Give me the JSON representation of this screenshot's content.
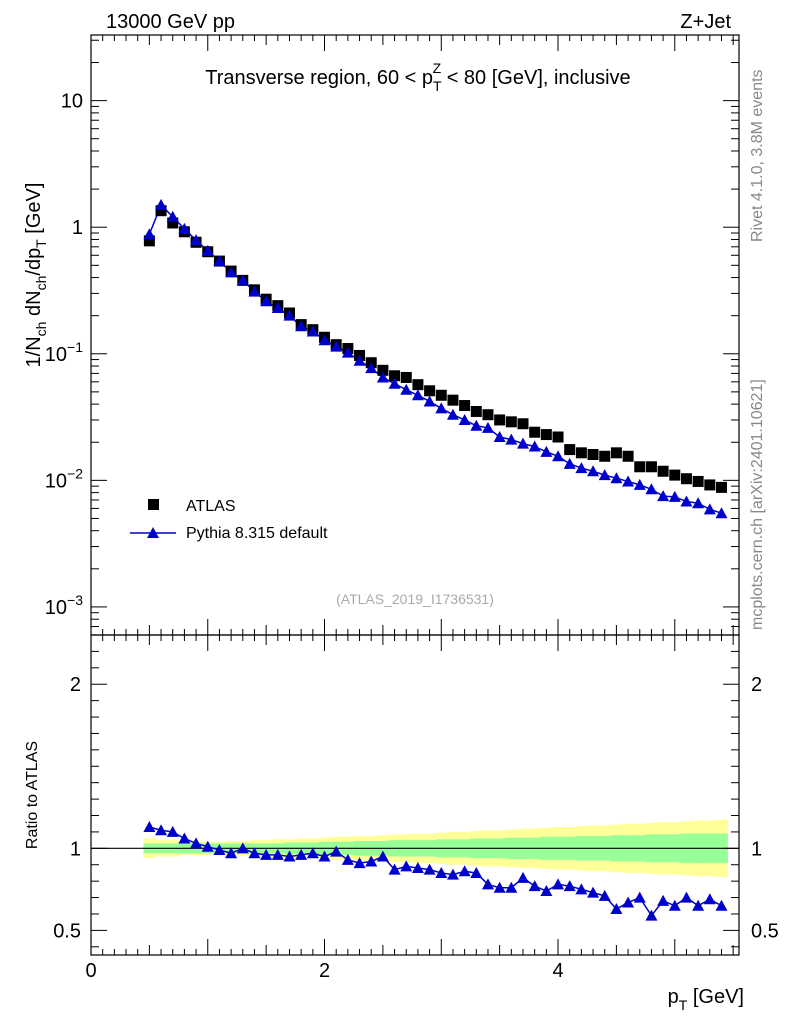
{
  "header": {
    "left": "13000 GeV pp",
    "right": "Z+Jet"
  },
  "side_labels": {
    "rivet": "Rivet 4.1.0,  3.8M events",
    "mcplots": "mcplots.cern.ch [arXiv:2401.10621]"
  },
  "chart_data": [
    {
      "type": "scatter",
      "panel": "main",
      "title_parts": {
        "prefix": "Transverse region, 60 < p",
        "sub": "T",
        "sup": "Z",
        "suffix": " < 80 [GeV], inclusive"
      },
      "ylabel_parts": {
        "a": "1/N",
        "a_sub": "ch",
        "b": " dN",
        "b_sub": "ch",
        "c": "/dp",
        "c_sub": "T",
        "d": " [GeV]"
      },
      "yscale": "log",
      "ylim": [
        0.0006,
        33
      ],
      "xlim": [
        0,
        5.55
      ],
      "y_ticks": [
        {
          "value": 10,
          "label": "10"
        },
        {
          "value": 1,
          "label": "1"
        },
        {
          "base": "10",
          "exp": "−1",
          "value": 0.1
        },
        {
          "base": "10",
          "exp": "−2",
          "value": 0.01
        },
        {
          "base": "10",
          "exp": "−3",
          "value": 0.001
        }
      ],
      "ref_label": "(ATLAS_2019_I1736531)",
      "legend": [
        {
          "name": "ATLAS",
          "marker": "square",
          "color": "#000000"
        },
        {
          "name": "Pythia 8.315 default",
          "marker": "triangle",
          "color": "#0000cc"
        }
      ],
      "x": [
        0.5,
        0.6,
        0.7,
        0.8,
        0.9,
        1.0,
        1.1,
        1.2,
        1.3,
        1.4,
        1.5,
        1.6,
        1.7,
        1.8,
        1.9,
        2.0,
        2.1,
        2.2,
        2.3,
        2.4,
        2.5,
        2.6,
        2.7,
        2.8,
        2.9,
        3.0,
        3.1,
        3.2,
        3.3,
        3.4,
        3.5,
        3.6,
        3.7,
        3.8,
        3.9,
        4.0,
        4.1,
        4.2,
        4.3,
        4.4,
        4.5,
        4.6,
        4.7,
        4.8,
        4.9,
        5.0,
        5.1,
        5.2,
        5.3,
        5.4
      ],
      "series": [
        {
          "name": "ATLAS",
          "values": [
            0.78,
            1.35,
            1.08,
            0.92,
            0.76,
            0.64,
            0.54,
            0.45,
            0.38,
            0.32,
            0.27,
            0.24,
            0.21,
            0.17,
            0.155,
            0.135,
            0.118,
            0.11,
            0.097,
            0.085,
            0.074,
            0.067,
            0.065,
            0.057,
            0.051,
            0.047,
            0.043,
            0.039,
            0.035,
            0.033,
            0.03,
            0.029,
            0.028,
            0.024,
            0.023,
            0.022,
            0.0175,
            0.0165,
            0.016,
            0.0155,
            0.0165,
            0.0155,
            0.0128,
            0.0128,
            0.0118,
            0.011,
            0.0103,
            0.0098,
            0.0092,
            0.0088
          ]
        },
        {
          "name": "Pythia 8.315 default",
          "values": [
            0.88,
            1.5,
            1.21,
            0.97,
            0.79,
            0.65,
            0.54,
            0.44,
            0.38,
            0.31,
            0.26,
            0.23,
            0.2,
            0.165,
            0.15,
            0.128,
            0.114,
            0.102,
            0.088,
            0.077,
            0.065,
            0.058,
            0.052,
            0.047,
            0.042,
            0.037,
            0.033,
            0.03,
            0.027,
            0.026,
            0.022,
            0.021,
            0.0195,
            0.0185,
            0.0168,
            0.0155,
            0.0135,
            0.0125,
            0.0118,
            0.011,
            0.0104,
            0.0098,
            0.0092,
            0.0085,
            0.0075,
            0.0074,
            0.0068,
            0.0066,
            0.0059,
            0.0055
          ]
        }
      ]
    },
    {
      "type": "line",
      "panel": "ratio",
      "ylabel": "Ratio to ATLAS",
      "xlabel_parts": {
        "p": "p",
        "sub": "T",
        "rest": " [GeV]"
      },
      "ylim": [
        0.35,
        2.3
      ],
      "xlim": [
        0,
        5.55
      ],
      "y_ticks": [
        {
          "value": 0.5,
          "label": "0.5"
        },
        {
          "value": 1,
          "label": "1"
        },
        {
          "value": 2,
          "label": "2"
        }
      ],
      "x_ticks": [
        {
          "value": 0,
          "label": "0"
        },
        {
          "value": 2,
          "label": "2"
        },
        {
          "value": 4,
          "label": "4"
        }
      ],
      "reference": 1,
      "band_inner_halfwidth": [
        0.03,
        0.03,
        0.03,
        0.03,
        0.03,
        0.03,
        0.03,
        0.03,
        0.03,
        0.03,
        0.03,
        0.03,
        0.035,
        0.035,
        0.035,
        0.04,
        0.04,
        0.04,
        0.045,
        0.045,
        0.045,
        0.05,
        0.05,
        0.05,
        0.05,
        0.055,
        0.055,
        0.055,
        0.06,
        0.06,
        0.06,
        0.065,
        0.065,
        0.065,
        0.07,
        0.07,
        0.07,
        0.075,
        0.075,
        0.075,
        0.08,
        0.08,
        0.08,
        0.085,
        0.085,
        0.085,
        0.09,
        0.09,
        0.09,
        0.09
      ],
      "band_outer_halfwidth": [
        0.06,
        0.05,
        0.05,
        0.04,
        0.04,
        0.04,
        0.04,
        0.045,
        0.045,
        0.05,
        0.05,
        0.055,
        0.055,
        0.06,
        0.06,
        0.065,
        0.07,
        0.07,
        0.075,
        0.075,
        0.08,
        0.085,
        0.085,
        0.09,
        0.09,
        0.095,
        0.1,
        0.1,
        0.105,
        0.11,
        0.11,
        0.115,
        0.12,
        0.12,
        0.125,
        0.13,
        0.13,
        0.135,
        0.14,
        0.14,
        0.145,
        0.15,
        0.15,
        0.155,
        0.16,
        0.16,
        0.165,
        0.17,
        0.17,
        0.175
      ],
      "series": [
        {
          "name": "Pythia 8.315 default",
          "values": [
            1.13,
            1.11,
            1.1,
            1.06,
            1.03,
            1.01,
            0.99,
            0.97,
            1.0,
            0.97,
            0.96,
            0.96,
            0.95,
            0.96,
            0.97,
            0.95,
            0.98,
            0.93,
            0.91,
            0.92,
            0.95,
            0.87,
            0.89,
            0.88,
            0.87,
            0.85,
            0.84,
            0.86,
            0.85,
            0.78,
            0.76,
            0.76,
            0.82,
            0.77,
            0.74,
            0.78,
            0.77,
            0.75,
            0.73,
            0.71,
            0.63,
            0.67,
            0.7,
            0.59,
            0.68,
            0.65,
            0.7,
            0.65,
            0.69,
            0.65
          ]
        }
      ]
    }
  ],
  "colors": {
    "band_inner": "#99ff99",
    "band_outer": "#ffff99",
    "mc": "#0000cc",
    "data": "#000000"
  }
}
